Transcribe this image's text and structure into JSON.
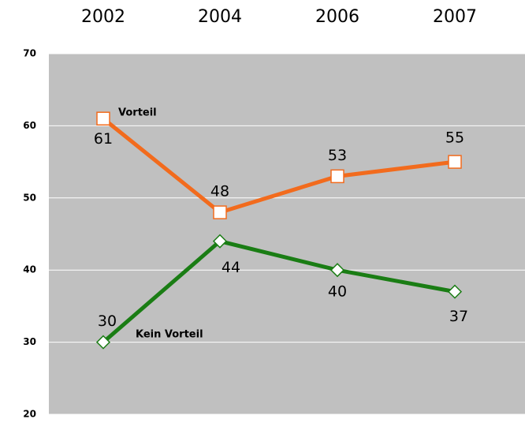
{
  "chart_data": {
    "type": "line",
    "categories": [
      "2002",
      "2004",
      "2006",
      "2007"
    ],
    "series": [
      {
        "name": "Vorteil",
        "color": "#f26b1d",
        "marker": "square",
        "values": [
          61,
          48,
          53,
          55
        ]
      },
      {
        "name": "Kein Vorteil",
        "color": "#1a7d14",
        "marker": "diamond",
        "values": [
          30,
          44,
          40,
          37
        ]
      }
    ],
    "ylim": [
      20,
      70
    ],
    "yticks": [
      20,
      30,
      40,
      50,
      60,
      70
    ],
    "grid": true
  }
}
